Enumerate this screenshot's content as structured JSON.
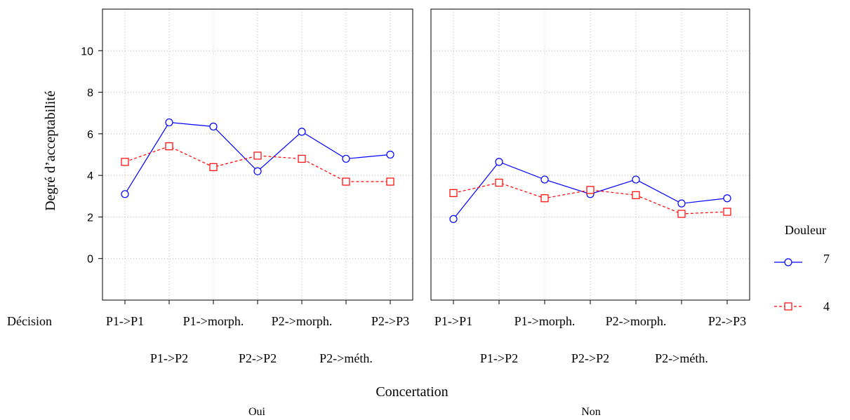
{
  "chart_data": {
    "type": "line",
    "ylabel": "Degré d’acceptabilité",
    "ylim": [
      -2,
      12
    ],
    "yticks": [
      0,
      2,
      4,
      6,
      8,
      10
    ],
    "x_axis_label": "Décision",
    "categories": [
      "P1->P1",
      "P1->P2",
      "P1->morph.",
      "P2->P2",
      "P2->morph.",
      "P2->méth.",
      "P2->P3"
    ],
    "facet_label": "Concertation",
    "grid": true,
    "legend": {
      "title": "Douleur",
      "position": "right",
      "entries": [
        {
          "label": "7",
          "color": "#0000ff",
          "marker": "circle",
          "line": "solid"
        },
        {
          "label": "4",
          "color": "#ff0000",
          "marker": "square",
          "line": "dashed"
        }
      ]
    },
    "panels": [
      {
        "label": "Oui",
        "series": [
          {
            "name": "7",
            "values": [
              3.1,
              6.55,
              6.35,
              4.2,
              6.1,
              4.8,
              5.0
            ]
          },
          {
            "name": "4",
            "values": [
              4.65,
              5.4,
              4.4,
              4.95,
              4.8,
              3.7,
              3.7
            ]
          }
        ]
      },
      {
        "label": "Non",
        "series": [
          {
            "name": "7",
            "values": [
              1.9,
              4.65,
              3.8,
              3.1,
              3.8,
              2.65,
              2.9
            ]
          },
          {
            "name": "4",
            "values": [
              3.15,
              3.65,
              2.9,
              3.3,
              3.05,
              2.15,
              2.25
            ]
          }
        ]
      }
    ]
  }
}
